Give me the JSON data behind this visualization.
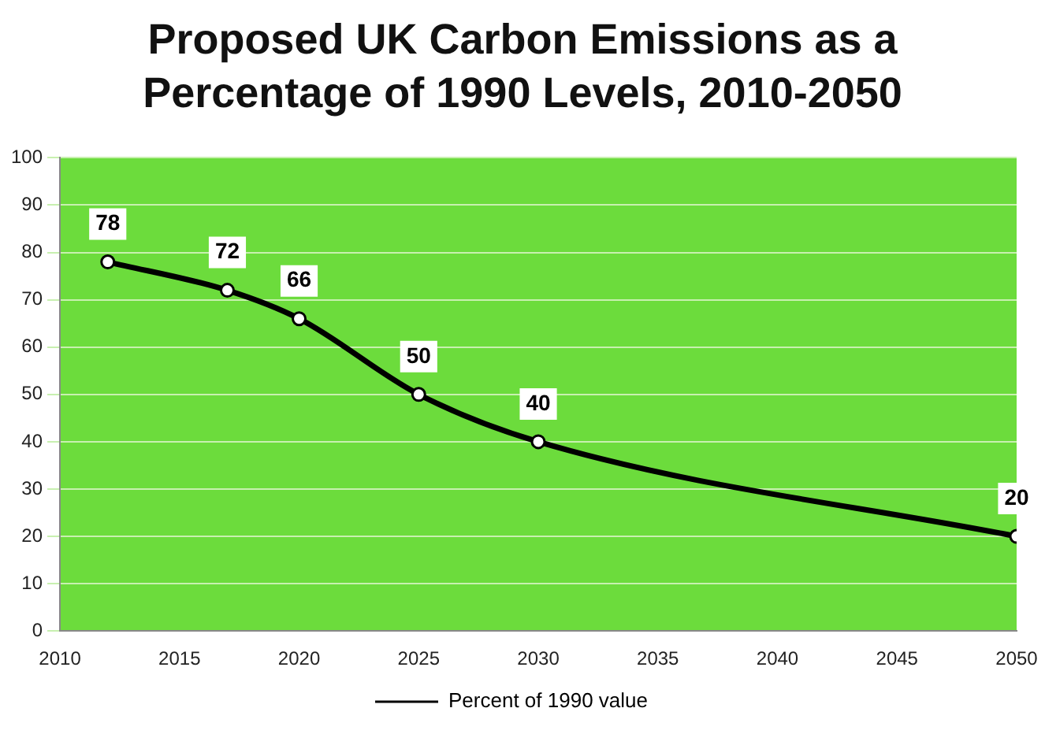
{
  "chart_data": {
    "type": "line",
    "title": "Proposed UK Carbon Emissions as a Percentage of 1990 Levels, 2010-2050",
    "x": [
      2012,
      2017,
      2020,
      2025,
      2030,
      2050
    ],
    "series": [
      {
        "name": "Percent of 1990 value",
        "color": "#000000",
        "values": [
          78,
          72,
          66,
          50,
          40,
          20
        ]
      }
    ],
    "xlim": [
      2010,
      2050
    ],
    "xticks": [
      2010,
      2015,
      2020,
      2025,
      2030,
      2035,
      2040,
      2045,
      2050
    ],
    "ylim": [
      0,
      100
    ],
    "yticks": [
      0,
      10,
      20,
      30,
      40,
      50,
      60,
      70,
      80,
      90,
      100
    ],
    "grid": "y",
    "legend": "bottom",
    "marker": "circle",
    "line_style": "solid",
    "data_labels": true
  }
}
